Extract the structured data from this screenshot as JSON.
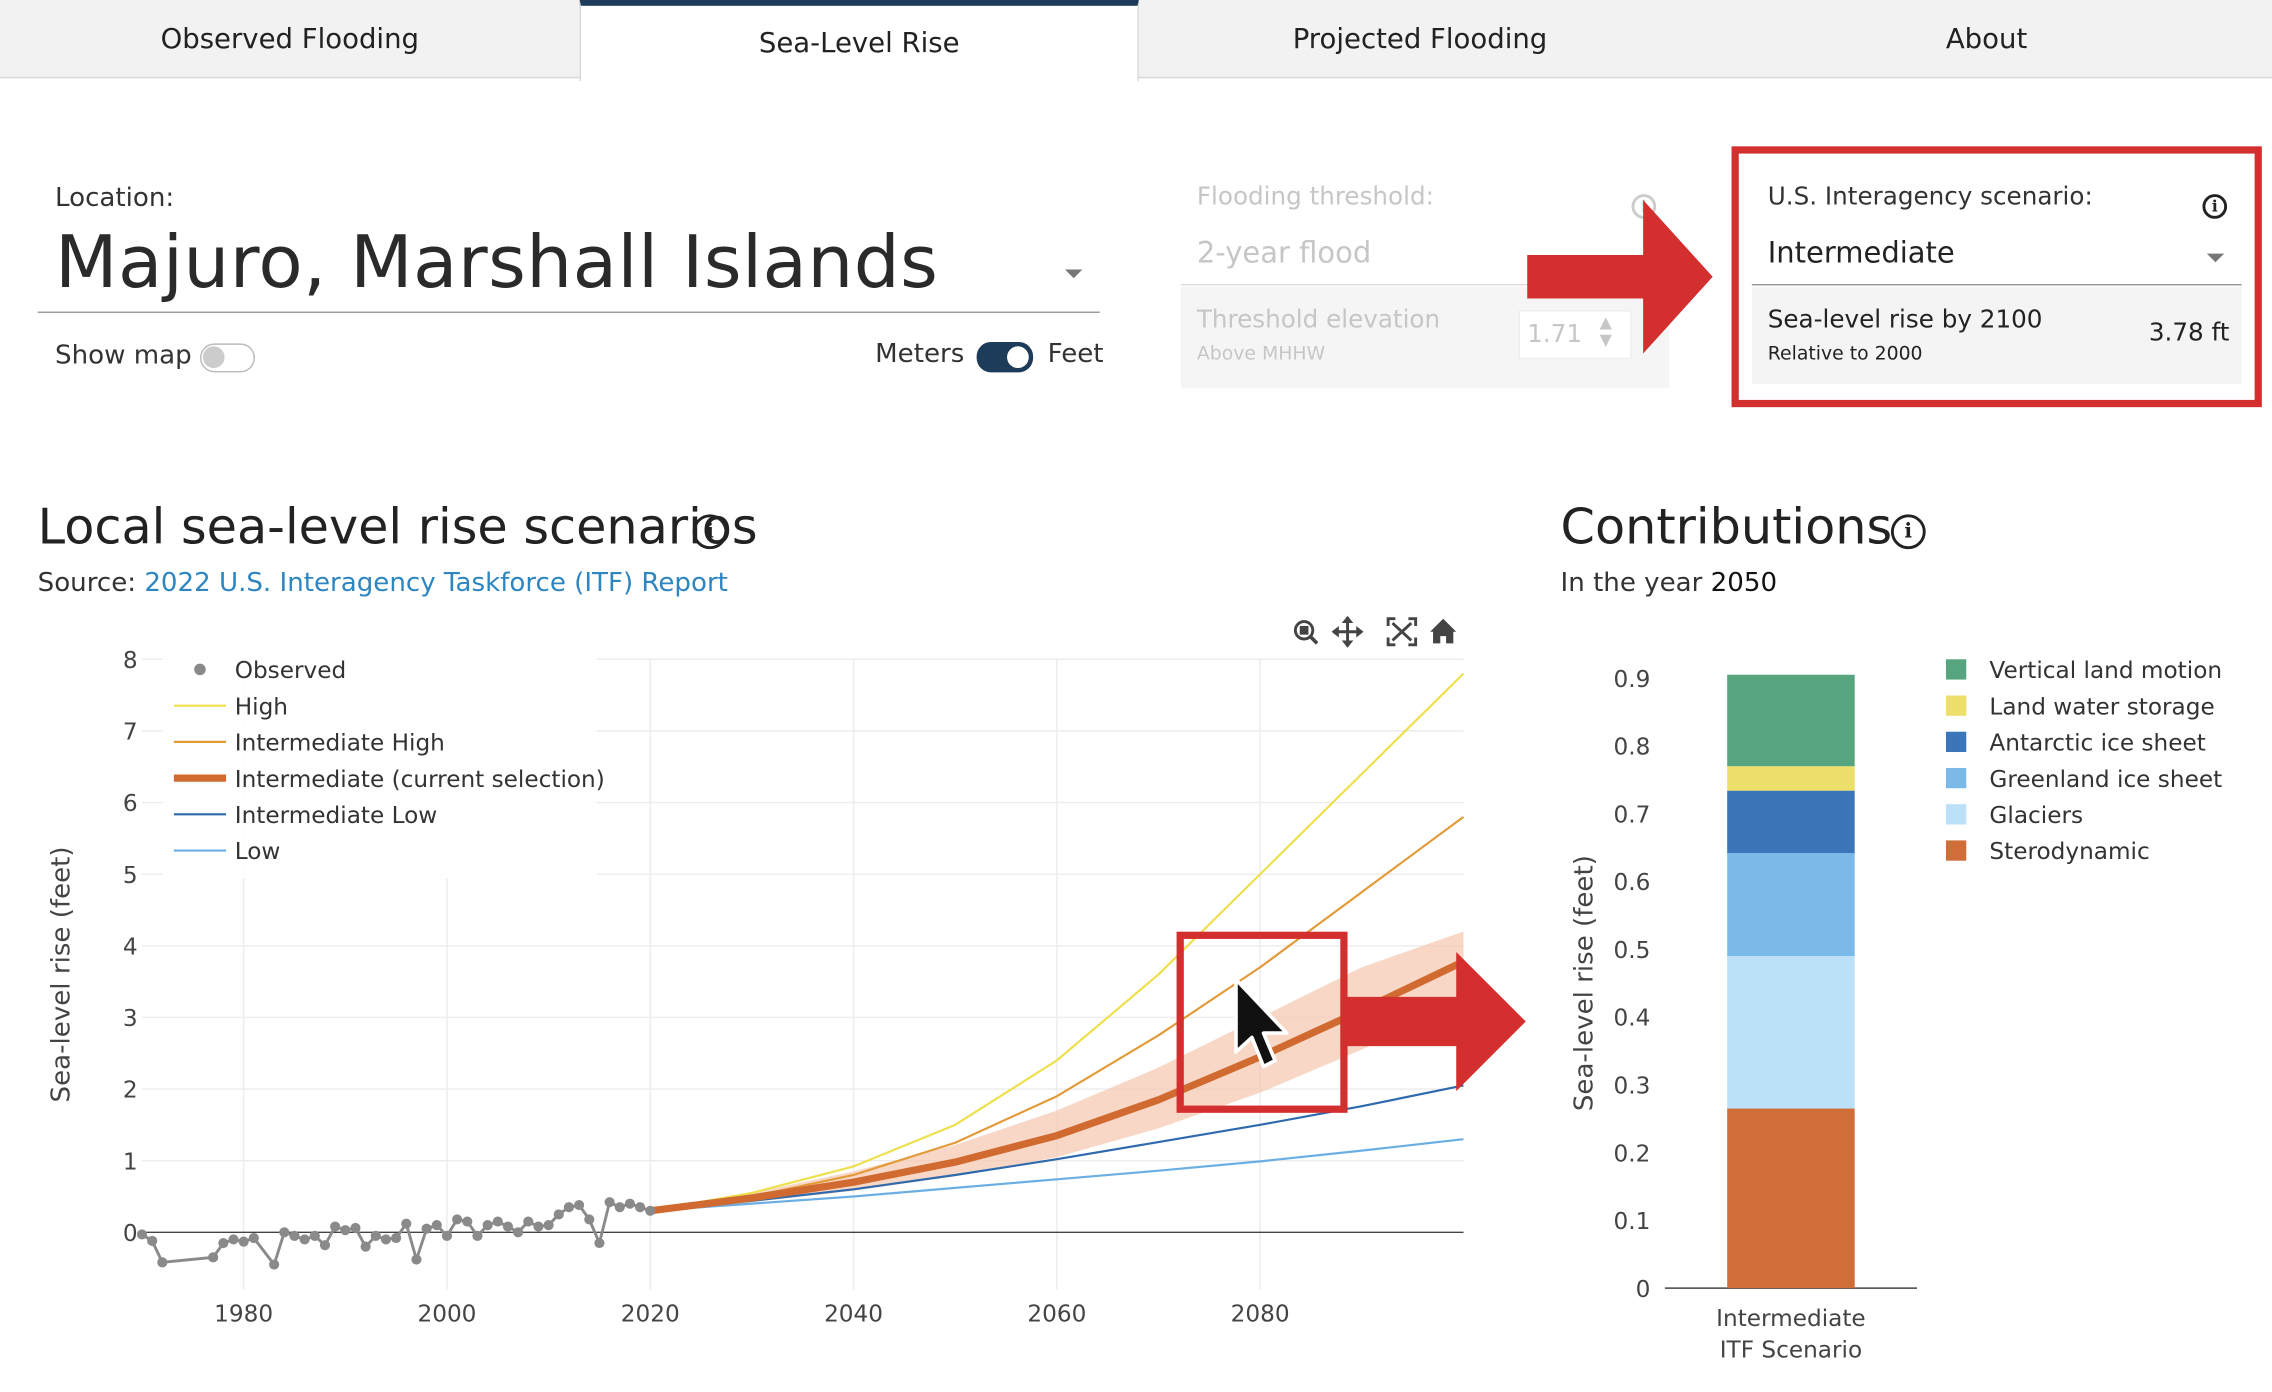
{
  "tabs": [
    {
      "label": "Observed Flooding"
    },
    {
      "label": "Sea-Level Rise"
    },
    {
      "label": "Projected Flooding"
    },
    {
      "label": "About"
    }
  ],
  "location": {
    "label": "Location:",
    "value": "Majuro, Marshall Islands"
  },
  "show_map": {
    "label": "Show map",
    "on": false
  },
  "units": {
    "meters": "Meters",
    "feet": "Feet",
    "selected": "feet"
  },
  "threshold": {
    "label": "Flooding threshold:",
    "value": "2-year flood",
    "elevation_label": "Threshold elevation",
    "elevation_sub": "Above MHHW",
    "elevation_value": "1.71"
  },
  "scenario": {
    "label": "U.S. Interagency scenario:",
    "value": "Intermediate",
    "slr_label": "Sea-level rise by 2100",
    "slr_sub": "Relative to 2000",
    "slr_value": "3.78 ft"
  },
  "slr_section": {
    "title": "Local sea-level rise scenarios",
    "source_prefix": "Source: ",
    "source_link": "2022 U.S. Interagency Taskforce (ITF) Report"
  },
  "contrib_section": {
    "title": "Contributions",
    "year_prefix": "In the year ",
    "year": "2050"
  },
  "colors": {
    "accent_red": "#d32f2f",
    "tab_active_border": "#1d3c5a",
    "toggle_on": "#1d3c5a",
    "link": "#2e86c1"
  },
  "chart_data": [
    {
      "type": "line",
      "ylabel": "Sea-level rise (feet)",
      "xlim": [
        1970,
        2100
      ],
      "ylim": [
        -0.8,
        8
      ],
      "x_ticks": [
        1980,
        2000,
        2020,
        2040,
        2060,
        2080
      ],
      "y_ticks": [
        0,
        1,
        2,
        3,
        4,
        5,
        6,
        7,
        8
      ],
      "grid": true,
      "legend_position": "top-left",
      "observed": {
        "name": "Observed",
        "color": "#8a8a8a",
        "x": [
          1970,
          1971,
          1972,
          1977,
          1978,
          1979,
          1980,
          1981,
          1983,
          1984,
          1985,
          1986,
          1987,
          1988,
          1989,
          1990,
          1991,
          1992,
          1993,
          1994,
          1995,
          1996,
          1997,
          1998,
          1999,
          2000,
          2001,
          2002,
          2003,
          2004,
          2005,
          2006,
          2007,
          2008,
          2009,
          2010,
          2011,
          2012,
          2013,
          2014,
          2015,
          2016,
          2017,
          2018,
          2019,
          2020
        ],
        "y": [
          -0.03,
          -0.12,
          -0.42,
          -0.35,
          -0.15,
          -0.1,
          -0.13,
          -0.08,
          -0.45,
          0.0,
          -0.05,
          -0.1,
          -0.05,
          -0.18,
          0.08,
          0.03,
          0.06,
          -0.2,
          -0.05,
          -0.1,
          -0.08,
          0.12,
          -0.38,
          0.05,
          0.1,
          -0.05,
          0.18,
          0.15,
          -0.05,
          0.1,
          0.15,
          0.08,
          0.0,
          0.15,
          0.08,
          0.1,
          0.25,
          0.35,
          0.38,
          0.18,
          -0.15,
          0.42,
          0.35,
          0.4,
          0.35,
          0.3
        ]
      },
      "series": [
        {
          "name": "High",
          "color": "#ede04c",
          "width": 1.5,
          "x": [
            2020,
            2030,
            2040,
            2050,
            2060,
            2070,
            2080,
            2090,
            2100
          ],
          "y": [
            0.3,
            0.55,
            0.92,
            1.5,
            2.4,
            3.6,
            5.0,
            6.4,
            7.8
          ]
        },
        {
          "name": "Intermediate High",
          "color": "#e39a38",
          "width": 1.5,
          "x": [
            2020,
            2030,
            2040,
            2050,
            2060,
            2070,
            2080,
            2090,
            2100
          ],
          "y": [
            0.3,
            0.5,
            0.8,
            1.25,
            1.9,
            2.75,
            3.7,
            4.75,
            5.8
          ]
        },
        {
          "name": "Intermediate (current selection)",
          "color": "#d06a31",
          "width": 5,
          "x": [
            2020,
            2030,
            2040,
            2050,
            2060,
            2070,
            2080,
            2090,
            2100
          ],
          "y": [
            0.3,
            0.48,
            0.7,
            0.98,
            1.35,
            1.85,
            2.45,
            3.1,
            3.78
          ]
        },
        {
          "name": "Intermediate Low",
          "color": "#2e6aad",
          "width": 1.5,
          "x": [
            2020,
            2030,
            2040,
            2050,
            2060,
            2070,
            2080,
            2090,
            2100
          ],
          "y": [
            0.3,
            0.44,
            0.6,
            0.8,
            1.02,
            1.26,
            1.5,
            1.76,
            2.05
          ]
        },
        {
          "name": "Low",
          "color": "#6aaee3",
          "width": 1.5,
          "x": [
            2020,
            2030,
            2040,
            2050,
            2060,
            2070,
            2080,
            2090,
            2100
          ],
          "y": [
            0.3,
            0.4,
            0.5,
            0.62,
            0.74,
            0.86,
            0.99,
            1.14,
            1.3
          ]
        }
      ],
      "uncertainty_band": {
        "color": "#f5c9b3",
        "x": [
          2020,
          2030,
          2040,
          2050,
          2060,
          2070,
          2080,
          2090,
          2100
        ],
        "upper": [
          0.32,
          0.55,
          0.85,
          1.22,
          1.7,
          2.3,
          3.0,
          3.7,
          4.2
        ],
        "lower": [
          0.28,
          0.42,
          0.58,
          0.78,
          1.05,
          1.45,
          1.95,
          2.55,
          3.2
        ]
      }
    },
    {
      "type": "bar",
      "stacked": true,
      "ylabel": "Sea-level rise (feet)",
      "categories": [
        "Intermediate\nITF Scenario"
      ],
      "category_lines": [
        "Intermediate",
        "ITF Scenario"
      ],
      "ylim": [
        0,
        0.9
      ],
      "y_ticks": [
        0,
        0.1,
        0.2,
        0.3,
        0.4,
        0.5,
        0.6,
        0.7,
        0.8,
        0.9
      ],
      "legend_position": "right",
      "series": [
        {
          "name": "Sterodynamic",
          "color": "#cf6e38",
          "values": [
            0.265
          ]
        },
        {
          "name": "Glaciers",
          "color": "#bce0f8",
          "values": [
            0.225
          ]
        },
        {
          "name": "Greenland ice sheet",
          "color": "#7ab9e8",
          "values": [
            0.152
          ]
        },
        {
          "name": "Antarctic ice sheet",
          "color": "#3b77b8",
          "values": [
            0.092
          ]
        },
        {
          "name": "Land water storage",
          "color": "#ece06a",
          "values": [
            0.036
          ]
        },
        {
          "name": "Vertical land motion",
          "color": "#57a57e",
          "values": [
            0.135
          ]
        }
      ]
    }
  ]
}
